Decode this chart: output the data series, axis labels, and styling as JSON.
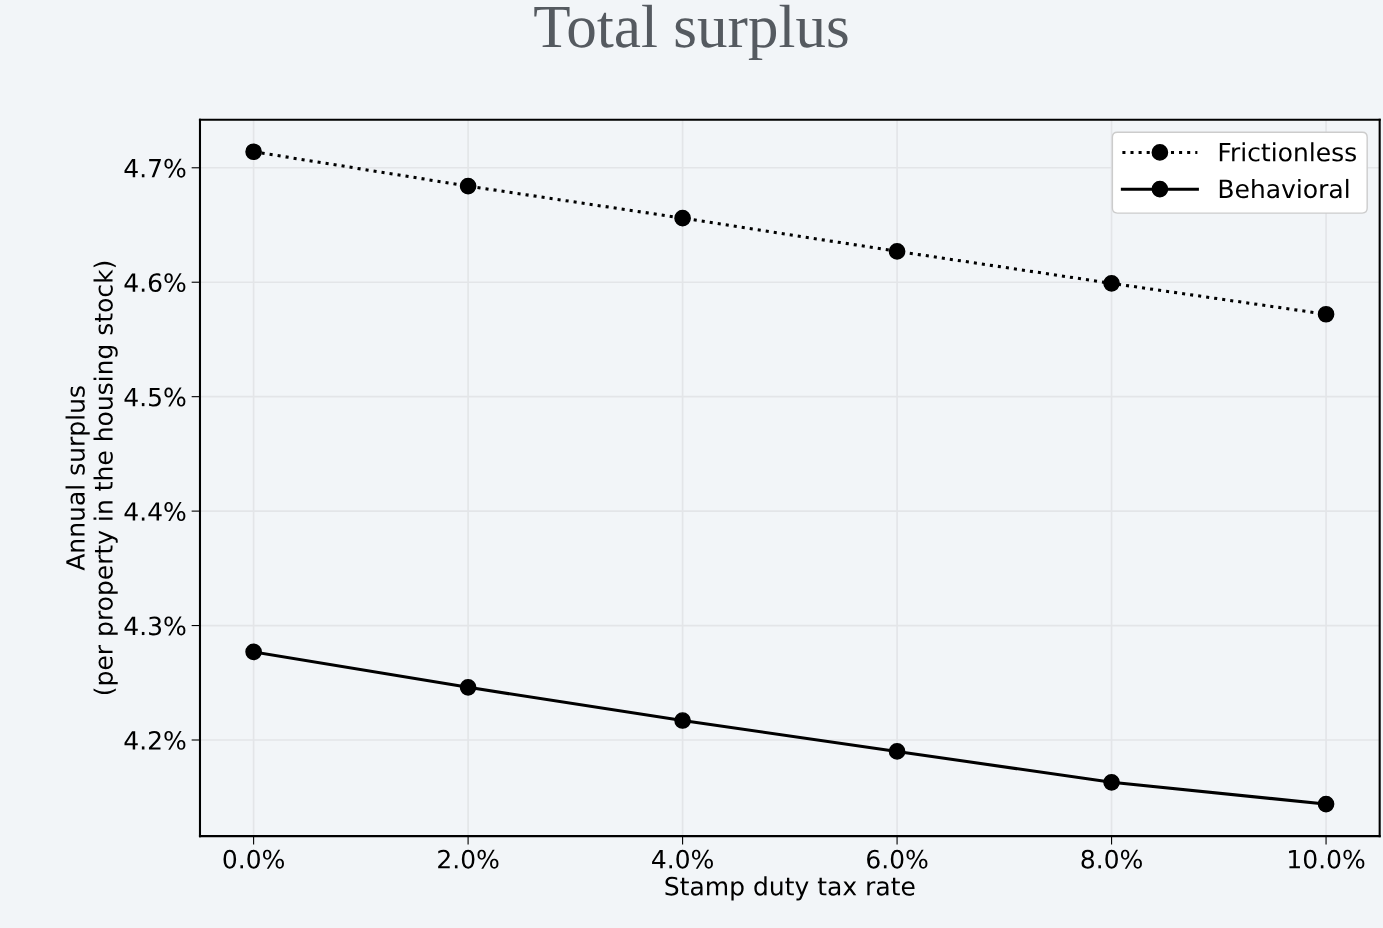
{
  "chart_data": {
    "type": "line",
    "title": "Total surplus",
    "xlabel": "Stamp duty tax rate",
    "ylabel": "Annual surplus\n(per property in the housing stock)",
    "x": [
      0,
      2,
      4,
      6,
      8,
      10
    ],
    "series": [
      {
        "name": "Frictionless",
        "color": "#000000",
        "line_style": "dotted",
        "values": [
          4.714,
          4.684,
          4.656,
          4.627,
          4.599,
          4.572
        ]
      },
      {
        "name": "Behavioral",
        "color": "#000000",
        "line_style": "solid",
        "values": [
          4.277,
          4.246,
          4.217,
          4.19,
          4.163,
          4.144
        ]
      }
    ],
    "marker": "circle",
    "xlim": [
      -0.5,
      10.5
    ],
    "xticks": [
      {
        "value": 0,
        "label": "0.0%"
      },
      {
        "value": 2,
        "label": "2.0%"
      },
      {
        "value": 4,
        "label": "4.0%"
      },
      {
        "value": 6,
        "label": "6.0%"
      },
      {
        "value": 8,
        "label": "8.0%"
      },
      {
        "value": 10,
        "label": "10.0%"
      }
    ],
    "ylim": [
      4.116,
      4.742
    ],
    "yticks": [
      {
        "value": 4.2,
        "label": "4.2%"
      },
      {
        "value": 4.3,
        "label": "4.3%"
      },
      {
        "value": 4.4,
        "label": "4.4%"
      },
      {
        "value": 4.5,
        "label": "4.5%"
      },
      {
        "value": 4.6,
        "label": "4.6%"
      },
      {
        "value": 4.7,
        "label": "4.7%"
      }
    ],
    "grid": true,
    "legend": "top right"
  }
}
